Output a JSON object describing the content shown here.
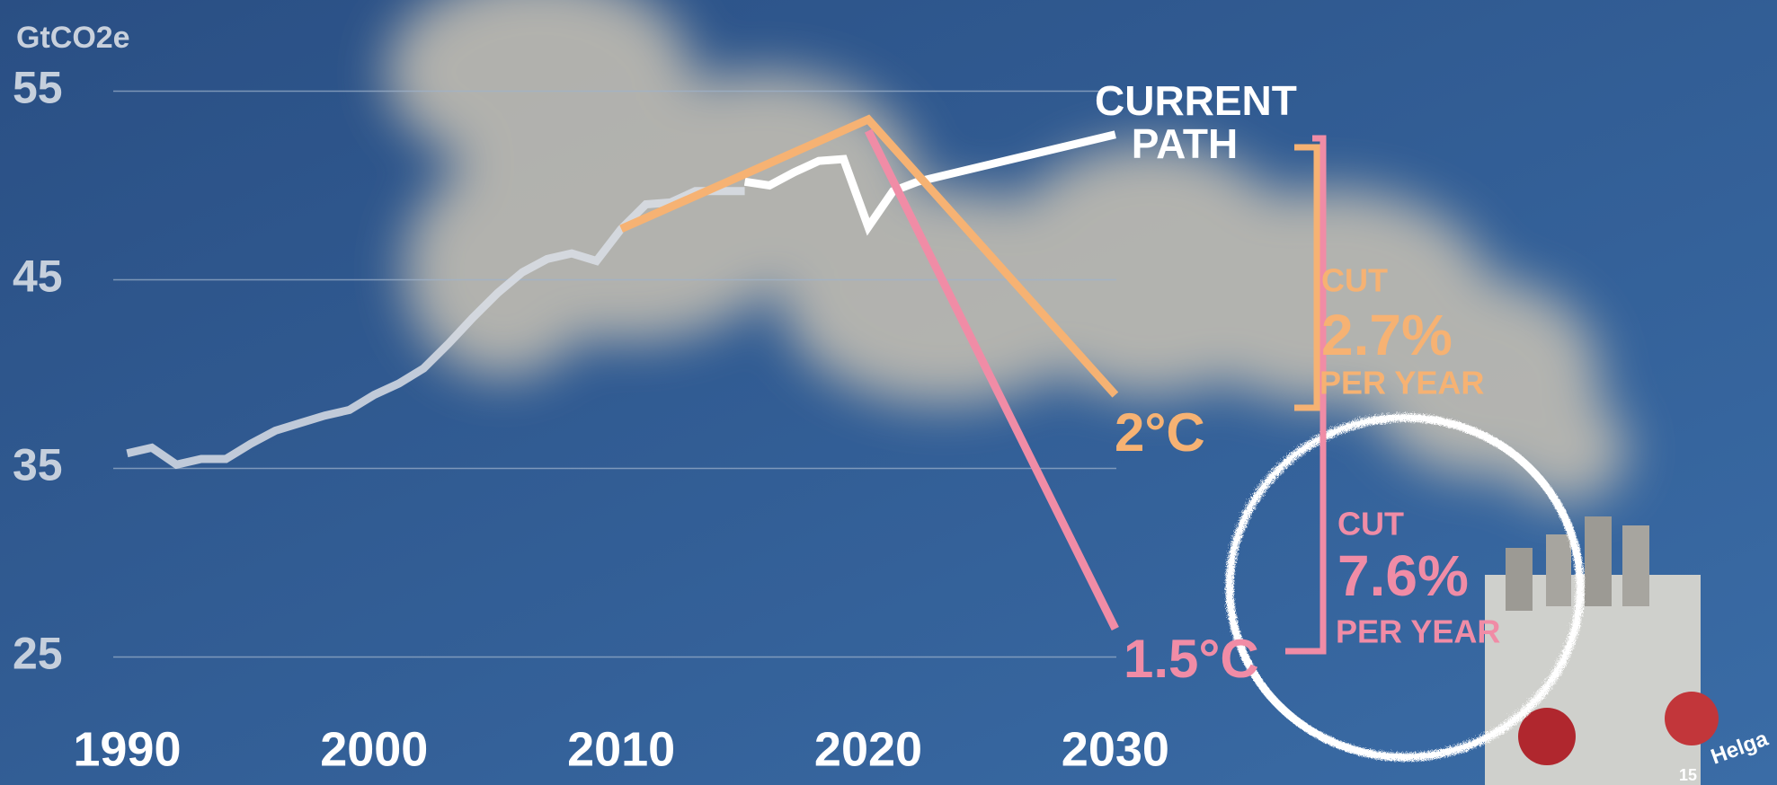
{
  "chart_data": {
    "type": "line",
    "y_label": "GtCO2e",
    "ylim": [
      18,
      60
    ],
    "yticks": [
      25,
      35,
      45,
      55
    ],
    "xlim": [
      1985,
      2055
    ],
    "xticks": [
      1990,
      2000,
      2010,
      2020,
      2030
    ],
    "grid": true,
    "series": [
      {
        "color": "#d9dee6",
        "x": [
          1990,
          1991,
          1992,
          1993,
          1994,
          1995,
          1996,
          1997,
          1998,
          1999,
          2000,
          2001,
          2002,
          2003,
          2004,
          2005,
          2006,
          2007,
          2008,
          2009,
          2010,
          2011,
          2012,
          2013,
          2014,
          2015
        ],
        "values": [
          35.8,
          36.1,
          35.2,
          35.5,
          35.5,
          36.3,
          37.0,
          37.4,
          37.8,
          38.1,
          38.9,
          39.5,
          40.3,
          41.6,
          43.0,
          44.3,
          45.4,
          46.1,
          46.4,
          46.0,
          47.7,
          49.0,
          49.1,
          49.7,
          49.7,
          49.7
        ]
      },
      {
        "name": "CURRENT PATH",
        "color": "#ffffff",
        "x": [
          2015,
          2016,
          2017,
          2018,
          2019,
          2020,
          2021,
          2022,
          2030
        ],
        "values": [
          50.2,
          50.0,
          50.7,
          51.3,
          51.4,
          47.8,
          49.7,
          50.2,
          52.7
        ]
      },
      {
        "name": "2°C",
        "color": "#f6b273",
        "x": [
          2010,
          2020,
          2030
        ],
        "values": [
          47.7,
          53.5,
          38.9
        ]
      },
      {
        "name": "1.5°C",
        "color": "#f08ca6",
        "x": [
          2020,
          2030
        ],
        "values": [
          52.9,
          26.5
        ]
      }
    ],
    "annotations": [
      [
        "CUT",
        "2.7%",
        "PER YEAR"
      ],
      [
        "CUT",
        "7.6%",
        "PER YEAR"
      ]
    ],
    "credits": [
      "Helga",
      "15"
    ]
  }
}
